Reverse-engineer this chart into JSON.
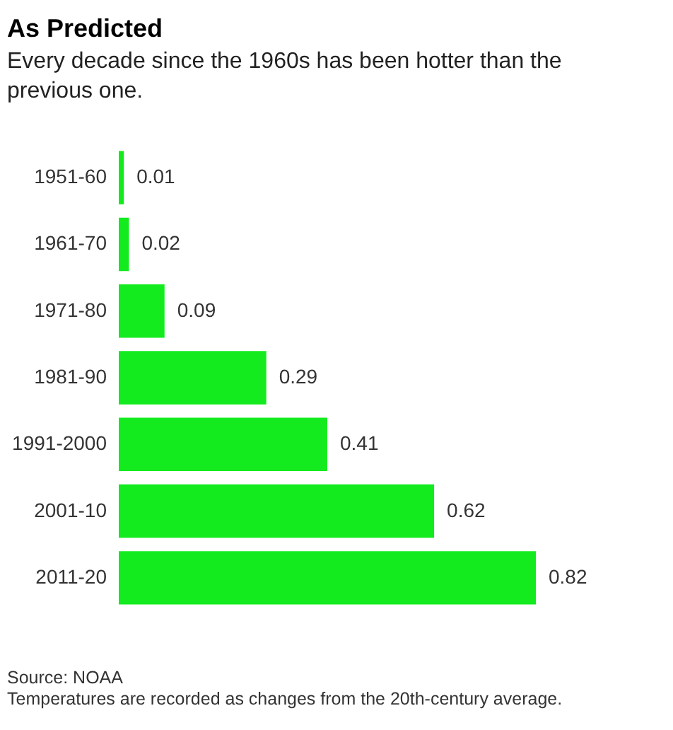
{
  "chart_data": {
    "type": "bar",
    "orientation": "horizontal",
    "title": "As Predicted",
    "subtitle": "Every decade since the 1960s has been hotter than the previous one.",
    "categories": [
      "1951-60",
      "1961-70",
      "1971-80",
      "1981-90",
      "1991-2000",
      "2001-10",
      "2011-20"
    ],
    "values": [
      0.01,
      0.02,
      0.09,
      0.29,
      0.41,
      0.62,
      0.82
    ],
    "color": "#13eb1f",
    "data_labels": true,
    "tick_labels": "y",
    "annotations": [
      "Source: NOAA",
      "Temperatures are recorded as changes from the 20th-century average."
    ]
  }
}
